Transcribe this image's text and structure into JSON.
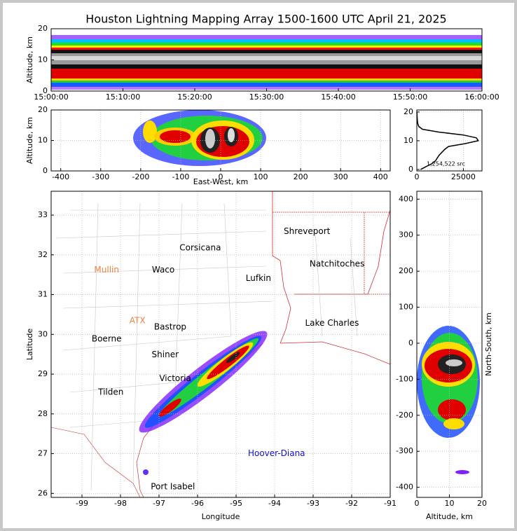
{
  "chart_data": [
    {
      "type": "density",
      "title": "Houston Lightning Mapping Array 1500-1600 UTC April 21, 2025",
      "ylabel": "Altitude, km",
      "ylim": [
        0,
        20
      ],
      "yticks": [
        0,
        10,
        20
      ],
      "xticks": [
        "15:00:00",
        "15:10:00",
        "15:20:00",
        "15:30:00",
        "15:40:00",
        "15:50:00",
        "16:00:00"
      ]
    },
    {
      "type": "density",
      "xlabel": "East-West, km",
      "ylabel": "Altitude, km",
      "xlim": [
        -424,
        424
      ],
      "ylim": [
        0,
        20
      ],
      "xticks": [
        -400,
        -300,
        -200,
        -100,
        0,
        100,
        200,
        300,
        400
      ],
      "yticks": [
        0,
        10,
        20
      ],
      "grid": true
    },
    {
      "type": "line",
      "annotation": "1,254,522 src",
      "xlim": [
        0,
        35000
      ],
      "ylim": [
        -0.5,
        20.7
      ],
      "xticks": [
        0,
        25000
      ],
      "yticks": [
        0,
        10,
        20
      ],
      "grid": true,
      "color": "#000000",
      "y": [
        0,
        1,
        2,
        3,
        4,
        5,
        6,
        7,
        8,
        9,
        10,
        11,
        12,
        13,
        14,
        15,
        16,
        17,
        18,
        19,
        20
      ],
      "values": [
        2000,
        5000,
        8000,
        10000,
        11000,
        12000,
        13500,
        15000,
        17000,
        26000,
        33000,
        32000,
        25000,
        12000,
        3000,
        1000,
        500,
        300,
        200,
        100,
        50
      ]
    },
    {
      "type": "map",
      "xlabel": "Longitude",
      "ylabel": "Latitude",
      "xlim": [
        -99.8,
        -91
      ],
      "ylim": [
        25.9,
        33.6
      ],
      "xticks": [
        -99,
        -98,
        -97,
        -96,
        -95,
        -94,
        -93,
        -92,
        -91
      ],
      "yticks": [
        26,
        27,
        28,
        29,
        30,
        31,
        32,
        33
      ],
      "grid": true,
      "places": [
        {
          "name": "Shreveport",
          "lon": -93.16,
          "lat": 32.59,
          "color": "#000000"
        },
        {
          "name": "Corsicana",
          "lon": -95.93,
          "lat": 32.17,
          "color": "#000000"
        },
        {
          "name": "Natchitoches",
          "lon": -92.38,
          "lat": 31.77,
          "color": "#000000"
        },
        {
          "name": "Mullin",
          "lon": -98.36,
          "lat": 31.62,
          "color": "#f08040"
        },
        {
          "name": "Waco",
          "lon": -96.89,
          "lat": 31.62,
          "color": "#000000"
        },
        {
          "name": "Lufkin",
          "lon": -94.42,
          "lat": 31.41,
          "color": "#000000"
        },
        {
          "name": "ATX",
          "lon": -97.56,
          "lat": 30.34,
          "color": "#f08040"
        },
        {
          "name": "Lake Charles",
          "lon": -92.51,
          "lat": 30.28,
          "color": "#000000"
        },
        {
          "name": "Bastrop",
          "lon": -96.71,
          "lat": 30.18,
          "color": "#000000"
        },
        {
          "name": "Boerne",
          "lon": -98.36,
          "lat": 29.88,
          "color": "#000000"
        },
        {
          "name": "Shiner",
          "lon": -96.84,
          "lat": 29.49,
          "color": "#000000"
        },
        {
          "name": "Victoria",
          "lon": -96.58,
          "lat": 28.89,
          "color": "#000000"
        },
        {
          "name": "Tilden",
          "lon": -98.25,
          "lat": 28.54,
          "color": "#000000"
        },
        {
          "name": "Hoover-Diana",
          "lon": -93.95,
          "lat": 27.0,
          "color": "#1010d0"
        },
        {
          "name": "Port Isabel",
          "lon": -96.64,
          "lat": 26.16,
          "color": "#000000"
        }
      ]
    },
    {
      "type": "density",
      "xlabel": "Altitude, km",
      "ylabel": "North-South, km",
      "xlim": [
        0,
        20
      ],
      "ylim": [
        -428,
        422
      ],
      "xticks": [
        0,
        10,
        20
      ],
      "yticks": [
        -400,
        -300,
        -200,
        -100,
        0,
        100,
        200,
        300,
        400
      ],
      "grid": true
    }
  ]
}
